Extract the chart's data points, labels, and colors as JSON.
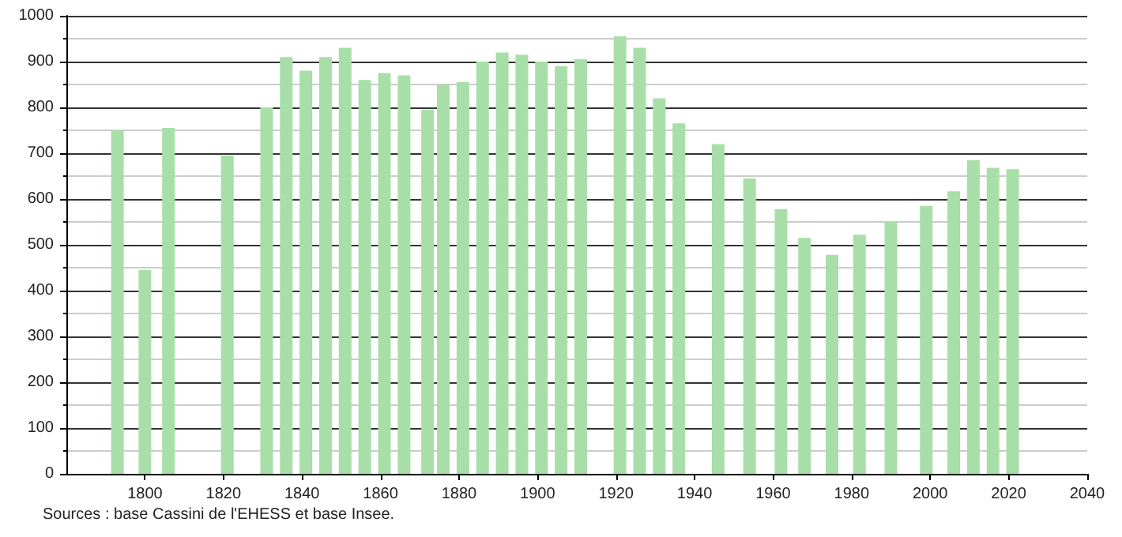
{
  "chart_data": {
    "type": "bar",
    "x": [
      1793,
      1800,
      1806,
      1821,
      1831,
      1836,
      1841,
      1846,
      1851,
      1856,
      1861,
      1866,
      1872,
      1876,
      1881,
      1886,
      1891,
      1896,
      1901,
      1906,
      1911,
      1921,
      1926,
      1931,
      1936,
      1946,
      1954,
      1962,
      1968,
      1975,
      1982,
      1990,
      1999,
      2006,
      2011,
      2016,
      2021
    ],
    "values": [
      750,
      445,
      755,
      695,
      800,
      910,
      880,
      910,
      930,
      860,
      875,
      870,
      795,
      850,
      855,
      900,
      920,
      915,
      900,
      890,
      905,
      955,
      930,
      820,
      765,
      720,
      645,
      578,
      515,
      478,
      522,
      550,
      585,
      617,
      685,
      668,
      665
    ],
    "color": "#a8dfa8",
    "xlim": [
      1780,
      2040
    ],
    "xticks": [
      1800,
      1820,
      1840,
      1860,
      1880,
      1900,
      1920,
      1940,
      1960,
      1980,
      2000,
      2020,
      2040
    ],
    "ylim": [
      0,
      1000
    ],
    "yticks": [
      0,
      100,
      200,
      300,
      400,
      500,
      600,
      700,
      800,
      900,
      1000
    ],
    "grid": "y",
    "annotations": [
      "Sources : base Cassini de l'EHESS et base Insee."
    ]
  }
}
